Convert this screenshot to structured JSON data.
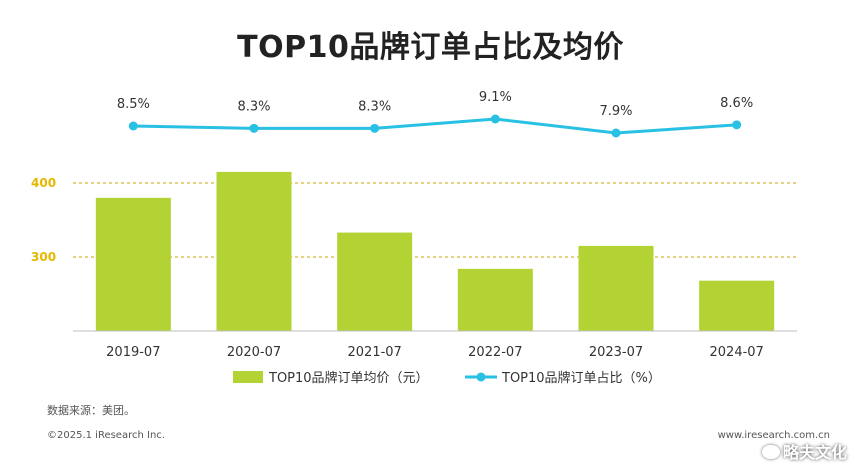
{
  "title": "TOP10品牌订单占比及均价",
  "colors": {
    "bar": "#b3d334",
    "line": "#28c1e3",
    "gridline": "#c9a600",
    "axis_tick": "#e6b800",
    "text": "#333333"
  },
  "chart_data": {
    "type": "bar+line",
    "categories": [
      "2019-07",
      "2020-07",
      "2021-07",
      "2022-07",
      "2023-07",
      "2024-07"
    ],
    "series": [
      {
        "name": "TOP10品牌订单均价（元）",
        "type": "bar",
        "axis": "left",
        "values": [
          380,
          415,
          333,
          284,
          315,
          268
        ]
      },
      {
        "name": "TOP10品牌订单占比（%）",
        "type": "line",
        "axis": "right",
        "values": [
          8.5,
          8.3,
          8.3,
          9.1,
          7.9,
          8.6
        ],
        "labels": [
          "8.5%",
          "8.3%",
          "8.3%",
          "9.1%",
          "7.9%",
          "8.6%"
        ]
      }
    ],
    "y_ticks": [
      "400",
      "300"
    ],
    "y_tick_values": [
      400,
      300
    ],
    "ylim": [
      200,
      440
    ],
    "y2lim": [
      5,
      9.6
    ],
    "grid": "dashed at y ticks",
    "legend_position": "bottom"
  },
  "footer": {
    "source": "数据来源：美团。",
    "copyright": "©2025.1 iResearch Inc.",
    "site": "www.iresearch.com.cn",
    "watermark": "略夫文化"
  }
}
